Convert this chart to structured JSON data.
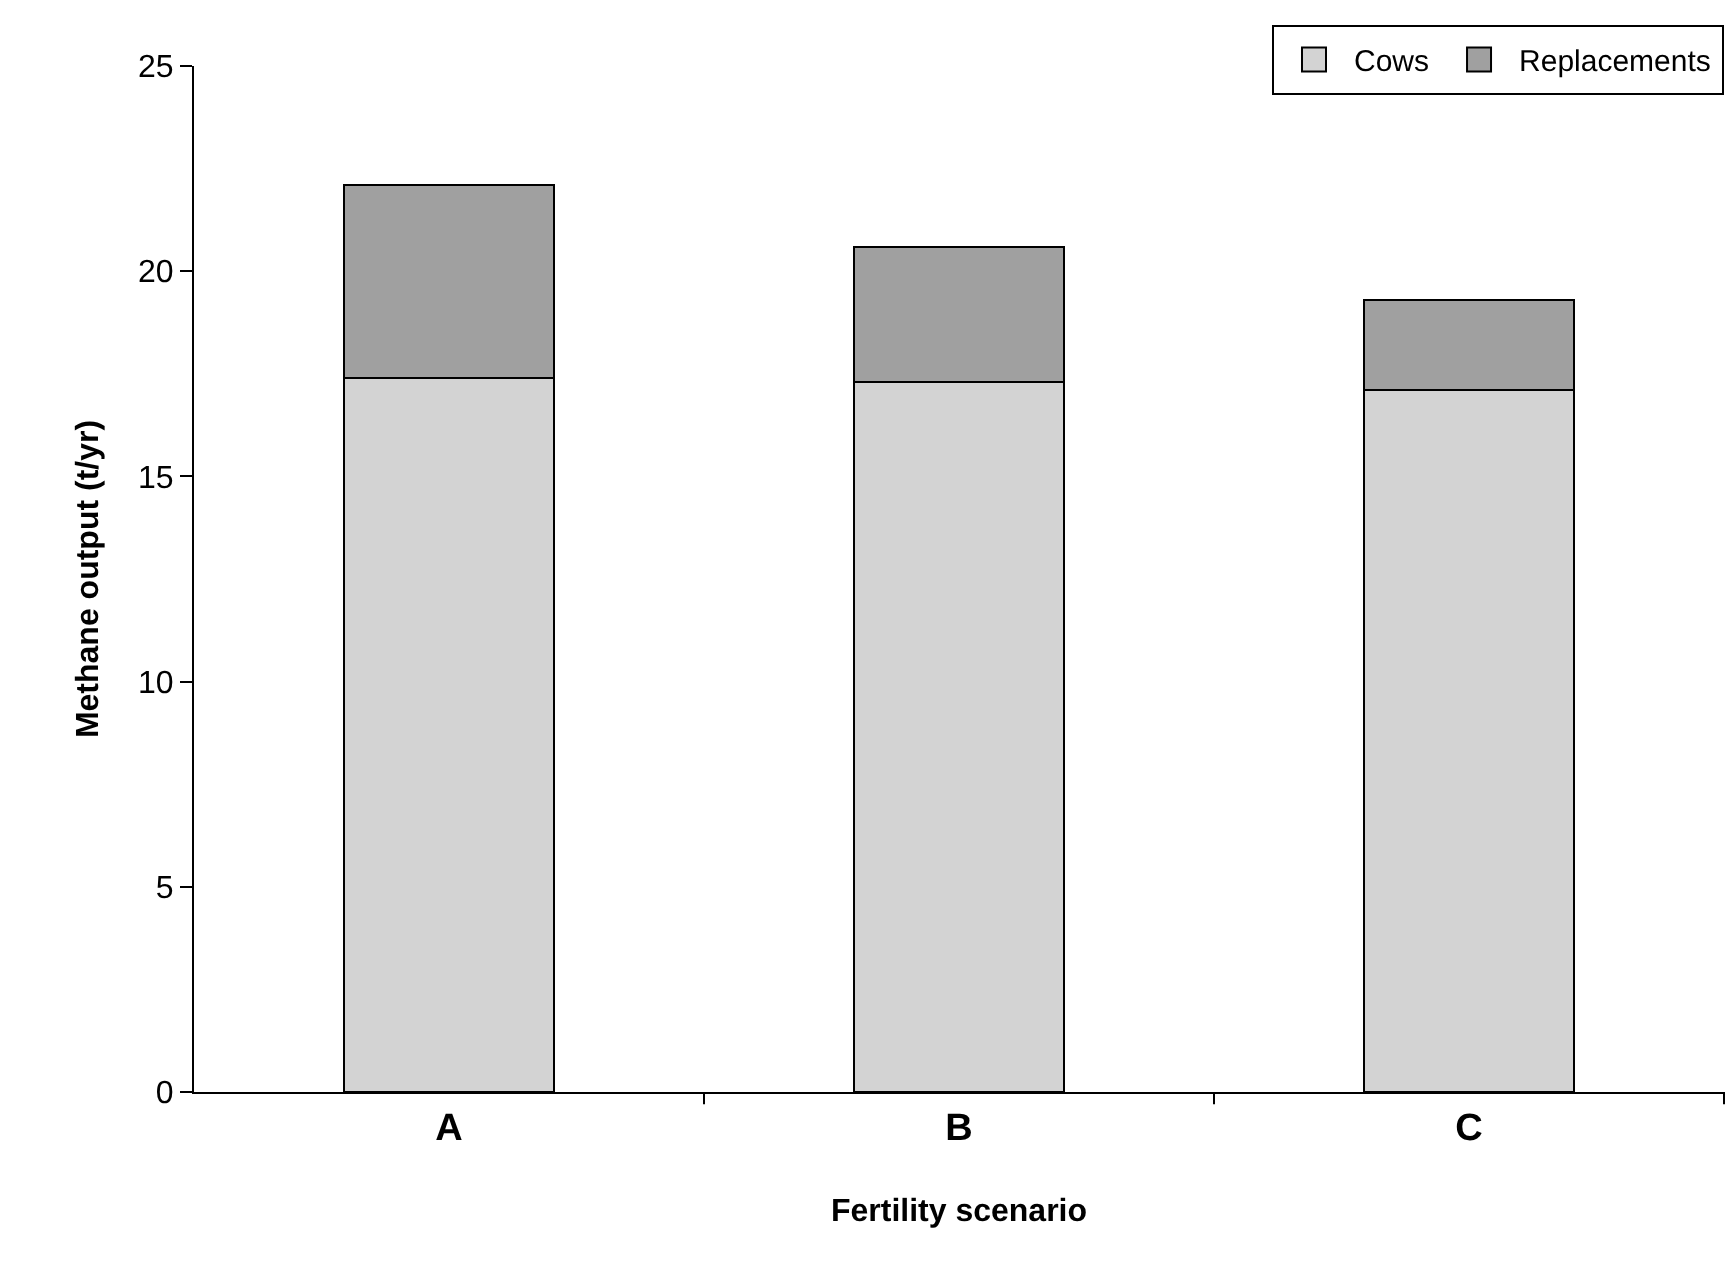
{
  "chart_data": {
    "type": "bar",
    "stacked": true,
    "xlabel": "Fertility scenario",
    "ylabel": "Methane output (t/yr)",
    "categories": [
      "A",
      "B",
      "C"
    ],
    "series": [
      {
        "name": "Cows",
        "color": "#d3d3d3",
        "values": [
          17.4,
          17.3,
          17.1
        ]
      },
      {
        "name": "Replacements",
        "color": "#a0a0a0",
        "values": [
          4.7,
          3.3,
          2.2
        ]
      }
    ],
    "ylim": [
      0,
      25
    ],
    "yticks": [
      0,
      5,
      10,
      15,
      20,
      25
    ],
    "grid": false,
    "legend": "top right"
  }
}
